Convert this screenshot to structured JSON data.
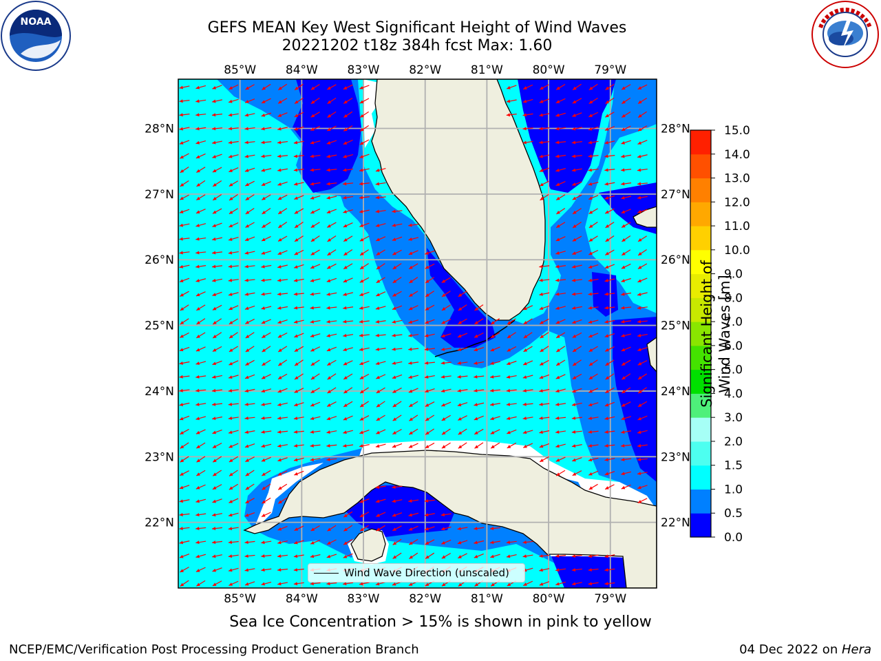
{
  "header": {
    "title_line1": "GEFS MEAN Key West Significant Height of Wind Waves",
    "title_line2": "20221202 t18z 384h fcst   Max: 1.60"
  },
  "logos": {
    "noaa": {
      "icon": "noaa-logo",
      "text": "NOAA",
      "ring_text": "NATIONAL OCEANIC AND ATMOSPHERIC ADMINISTRATION · U.S. DEPARTMENT OF COMMERCE"
    },
    "nws": {
      "icon": "nws-logo",
      "ring_text": "NATIONAL WEATHER SERVICE"
    }
  },
  "map": {
    "lon_labels": [
      "85°W",
      "84°W",
      "83°W",
      "82°W",
      "81°W",
      "80°W",
      "79°W"
    ],
    "lat_labels": [
      "28°N",
      "27°N",
      "26°N",
      "25°N",
      "24°N",
      "23°N",
      "22°N"
    ],
    "lon_range": [
      -86.0,
      -78.25
    ],
    "lat_range": [
      21.0,
      28.75
    ],
    "colors": {
      "water_low": "#0000ff",
      "water_mid": "#0080ff",
      "water_high": "#00ffff",
      "land": "#efefdf",
      "arrow": "#ff0000",
      "grid": "#b0b0b0"
    },
    "legend": {
      "label": "Wind Wave Direction (unscaled)"
    }
  },
  "colorbar": {
    "label": "Significant Height of Wind Waves [m]",
    "ticks": [
      "0.0",
      "0.5",
      "1.0",
      "1.5",
      "2.0",
      "3.0",
      "4.0",
      "5.0",
      "6.0",
      "7.0",
      "8.0",
      "9.0",
      "10.0",
      "11.0",
      "12.0",
      "13.0",
      "14.0",
      "15.0"
    ],
    "colors": [
      "#0000ff",
      "#0080ff",
      "#00ffff",
      "#4dfff0",
      "#a6fff6",
      "#4ef07a",
      "#00e000",
      "#44e300",
      "#8ae600",
      "#c8e800",
      "#e8ec00",
      "#ffff00",
      "#ffd000",
      "#ffa800",
      "#ff8000",
      "#ff5000",
      "#ff2000"
    ]
  },
  "bottom_note": "Sea Ice Concentration > 15% is shown in pink to yellow",
  "footer": {
    "left": "NCEP/EMC/Verification Post Processing Product Generation Branch",
    "right_date": "04 Dec 2022 on ",
    "right_host": "Hera"
  }
}
